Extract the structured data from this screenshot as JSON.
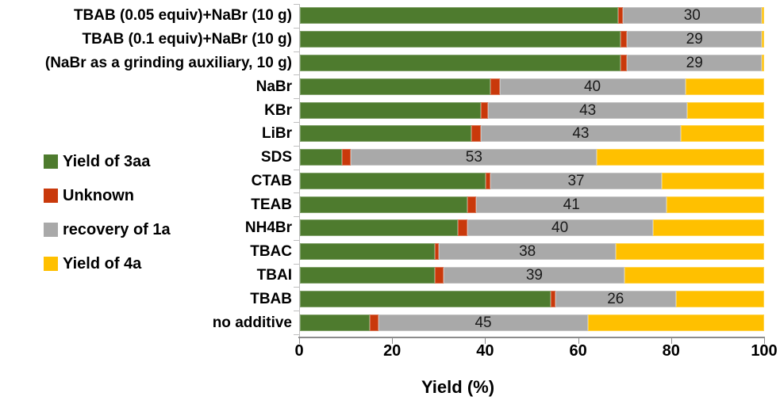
{
  "chart_data": {
    "type": "bar",
    "orientation": "horizontal-stacked",
    "xlabel": "Yield (%)",
    "xlim": [
      0,
      100
    ],
    "x_ticks": [
      "0",
      "20",
      "40",
      "60",
      "80",
      "100"
    ],
    "grid": false,
    "legend_position": "left-middle",
    "legend": [
      {
        "name": "Yield of 3aa",
        "color": "#4e7b2e"
      },
      {
        "name": "Unknown",
        "color": "#c9390b"
      },
      {
        "name": "recovery of 1a",
        "color": "#a9a9a9"
      },
      {
        "name": "Yield of 4a",
        "color": "#ffc000"
      }
    ],
    "categories": [
      "TBAB (0.05 equiv)+NaBr (10 g)",
      "TBAB (0.1 equiv)+NaBr (10 g)",
      "(NaBr as a grinding auxiliary, 10 g)",
      "NaBr",
      "KBr",
      "LiBr",
      "SDS",
      "CTAB",
      "TEAB",
      "NH4Br",
      "TBAC",
      "TBAI",
      "TBAB",
      "no additive"
    ],
    "series": [
      {
        "name": "Yield of 3aa",
        "values": [
          68.5,
          69,
          69,
          41,
          39,
          37,
          9,
          40,
          36,
          34,
          29,
          29,
          54,
          15
        ]
      },
      {
        "name": "Unknown",
        "values": [
          1,
          1.5,
          1.5,
          2,
          1.5,
          2,
          2,
          1,
          2,
          2,
          1,
          2,
          1,
          2
        ]
      },
      {
        "name": "recovery of 1a",
        "values": [
          30,
          29,
          29,
          40,
          43,
          43,
          53,
          37,
          41,
          40,
          38,
          39,
          26,
          45
        ]
      },
      {
        "name": "Yield of 4a",
        "values": [
          0.5,
          0.5,
          0.5,
          17,
          16.5,
          18,
          36,
          22,
          21,
          24,
          32,
          30,
          19,
          38
        ]
      }
    ],
    "data_labels": {
      "on_series": "recovery of 1a",
      "values": [
        "30",
        "29",
        "29",
        "40",
        "43",
        "43",
        "53",
        "37",
        "41",
        "40",
        "38",
        "39",
        "26",
        "45"
      ]
    }
  }
}
